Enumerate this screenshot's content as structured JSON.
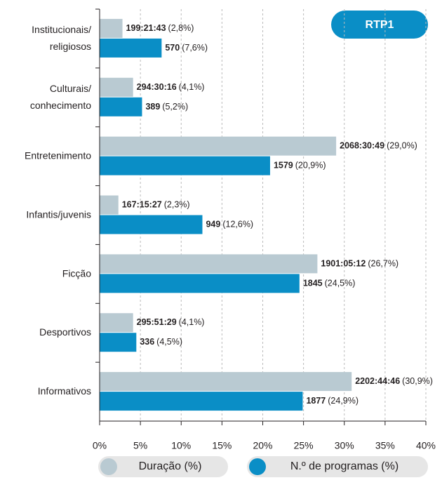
{
  "chart_data": {
    "type": "bar",
    "orientation": "horizontal",
    "title": "RTP1",
    "categories": [
      [
        "Institucionais/",
        "religiosos"
      ],
      [
        "Culturais/",
        "conhecimento"
      ],
      [
        "Entretenimento"
      ],
      [
        "Infantis/juvenis"
      ],
      [
        "Ficção"
      ],
      [
        "Desportivos"
      ],
      [
        "Informativos"
      ]
    ],
    "series": [
      {
        "name": "Duração (%)",
        "color": "#b9cad2",
        "values": [
          2.8,
          4.1,
          29.0,
          2.3,
          26.7,
          4.1,
          30.9
        ],
        "amounts": [
          "199:21:43",
          "294:30:16",
          "2068:30:49",
          "167:15:27",
          "1901:05:12",
          "295:51:29",
          "2202:44:46"
        ],
        "value_labels": [
          "(2,8%)",
          "(4,1%)",
          "(29,0%)",
          "(2,3%)",
          "(26,7%)",
          "(4,1%)",
          "(30,9%)"
        ]
      },
      {
        "name": "N.º de programas (%)",
        "color": "#0a8ec6",
        "values": [
          7.6,
          5.2,
          20.9,
          12.6,
          24.5,
          4.5,
          24.9
        ],
        "amounts": [
          570,
          389,
          1579,
          949,
          1845,
          336,
          1877
        ],
        "value_labels": [
          "(7,6%)",
          "(5,2%)",
          "(20,9%)",
          "(12,6%)",
          "(24,5%)",
          "(4,5%)",
          "(24,9%)"
        ]
      }
    ],
    "xlim": [
      0,
      40
    ],
    "xticks": [
      {
        "value": 0,
        "label": "0%"
      },
      {
        "value": 5,
        "label": "5%"
      },
      {
        "value": 10,
        "label": "10%"
      },
      {
        "value": 15,
        "label": "15%"
      },
      {
        "value": 20,
        "label": "20%"
      },
      {
        "value": 25,
        "label": "25%"
      },
      {
        "value": 30,
        "label": "30%"
      },
      {
        "value": 35,
        "label": "35%"
      },
      {
        "value": 40,
        "label": "40%"
      }
    ],
    "grid": true,
    "legend": "bottom"
  }
}
